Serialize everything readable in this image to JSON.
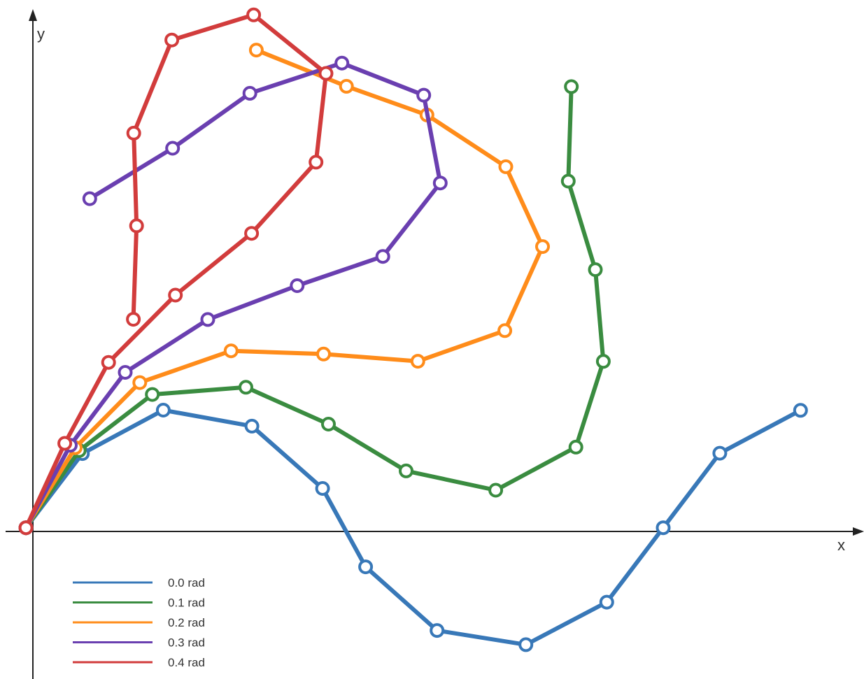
{
  "chart_data": {
    "type": "line",
    "xlabel": "x",
    "ylabel": "y",
    "xlim": [
      -1.37,
      44.24
    ],
    "ylim": [
      -8.01,
      27.95
    ],
    "grid": false,
    "legend_position": "bottom-left",
    "series": [
      {
        "name": "0.0 rad",
        "color": "#3878b8",
        "points": [
          [
            0,
            0
          ],
          [
            2.98,
            3.93
          ],
          [
            7.25,
            6.23
          ],
          [
            11.93,
            5.38
          ],
          [
            15.66,
            2.08
          ],
          [
            17.93,
            -2.07
          ],
          [
            21.7,
            -5.44
          ],
          [
            26.39,
            -6.19
          ],
          [
            30.66,
            -3.94
          ],
          [
            33.64,
            0
          ],
          [
            36.63,
            3.95
          ],
          [
            40.89,
            6.22
          ]
        ]
      },
      {
        "name": "0.1 rad",
        "color": "#3a8c40",
        "points": [
          [
            0,
            0
          ],
          [
            2.81,
            4.09
          ],
          [
            6.67,
            7.06
          ],
          [
            11.61,
            7.44
          ],
          [
            15.97,
            5.49
          ],
          [
            20.07,
            3.01
          ],
          [
            24.8,
            1.99
          ],
          [
            29.03,
            4.27
          ],
          [
            30.48,
            8.81
          ],
          [
            30.06,
            13.67
          ],
          [
            28.63,
            18.36
          ],
          [
            28.79,
            23.36
          ]
        ]
      },
      {
        "name": "0.2 rad",
        "color": "#ff8c1a",
        "points": [
          [
            0,
            0
          ],
          [
            2.6,
            4.24
          ],
          [
            6.01,
            7.69
          ],
          [
            10.83,
            9.37
          ],
          [
            15.71,
            9.2
          ],
          [
            20.69,
            8.82
          ],
          [
            25.28,
            10.44
          ],
          [
            27.27,
            14.89
          ],
          [
            25.33,
            19.12
          ],
          [
            21.17,
            21.86
          ],
          [
            16.92,
            23.38
          ],
          [
            12.16,
            25.3
          ]
        ]
      },
      {
        "name": "0.3 rad",
        "color": "#6a3fb0",
        "points": [
          [
            0,
            0
          ],
          [
            2.34,
            4.37
          ],
          [
            5.24,
            8.23
          ],
          [
            9.6,
            11.03
          ],
          [
            14.32,
            12.82
          ],
          [
            18.84,
            14.37
          ],
          [
            21.87,
            18.26
          ],
          [
            21.0,
            22.91
          ],
          [
            16.68,
            24.61
          ],
          [
            11.82,
            23.01
          ],
          [
            7.74,
            20.1
          ],
          [
            3.37,
            17.43
          ]
        ]
      },
      {
        "name": "0.4 rad",
        "color": "#d23c3c",
        "points": [
          [
            0,
            0
          ],
          [
            2.05,
            4.47
          ],
          [
            4.36,
            8.76
          ],
          [
            7.89,
            12.32
          ],
          [
            11.91,
            15.59
          ],
          [
            15.31,
            19.36
          ],
          [
            15.84,
            24.06
          ],
          [
            12.02,
            27.16
          ],
          [
            7.7,
            25.83
          ],
          [
            5.69,
            20.9
          ],
          [
            5.84,
            15.99
          ],
          [
            5.67,
            11.04
          ]
        ]
      }
    ]
  }
}
